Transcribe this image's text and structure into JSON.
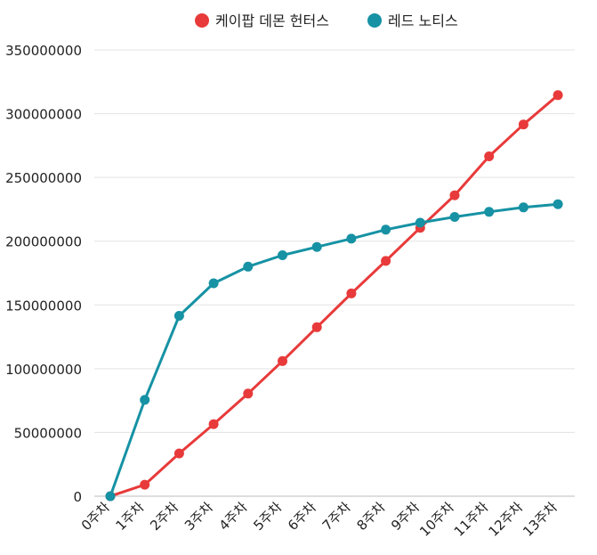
{
  "chart_data": {
    "type": "line",
    "categories": [
      "0주차",
      "1주차",
      "2주차",
      "3주차",
      "4주차",
      "5주차",
      "6주차",
      "7주차",
      "8주차",
      "9주차",
      "10주차",
      "11주차",
      "12주차",
      "13주차"
    ],
    "series": [
      {
        "name": "케이팝 데몬 헌터스",
        "color": "#e83a3a",
        "values": [
          0,
          9000000,
          33500000,
          56500000,
          80500000,
          106000000,
          132500000,
          159000000,
          184500000,
          210500000,
          236000000,
          266500000,
          291500000,
          314500000
        ]
      },
      {
        "name": "레드 노티스",
        "color": "#1692a4",
        "values": [
          0,
          75500000,
          141500000,
          167000000,
          180000000,
          189000000,
          195500000,
          202000000,
          209000000,
          214500000,
          219000000,
          223000000,
          226500000,
          229000000
        ]
      }
    ],
    "ylim": [
      0,
      350000000
    ],
    "yticks": [
      0,
      50000000,
      100000000,
      150000000,
      200000000,
      250000000,
      300000000,
      350000000
    ],
    "ytick_labels": [
      "0",
      "50000000",
      "100000000",
      "150000000",
      "200000000",
      "250000000",
      "300000000",
      "350000000"
    ],
    "grid": true,
    "legend_position": "top-center"
  }
}
